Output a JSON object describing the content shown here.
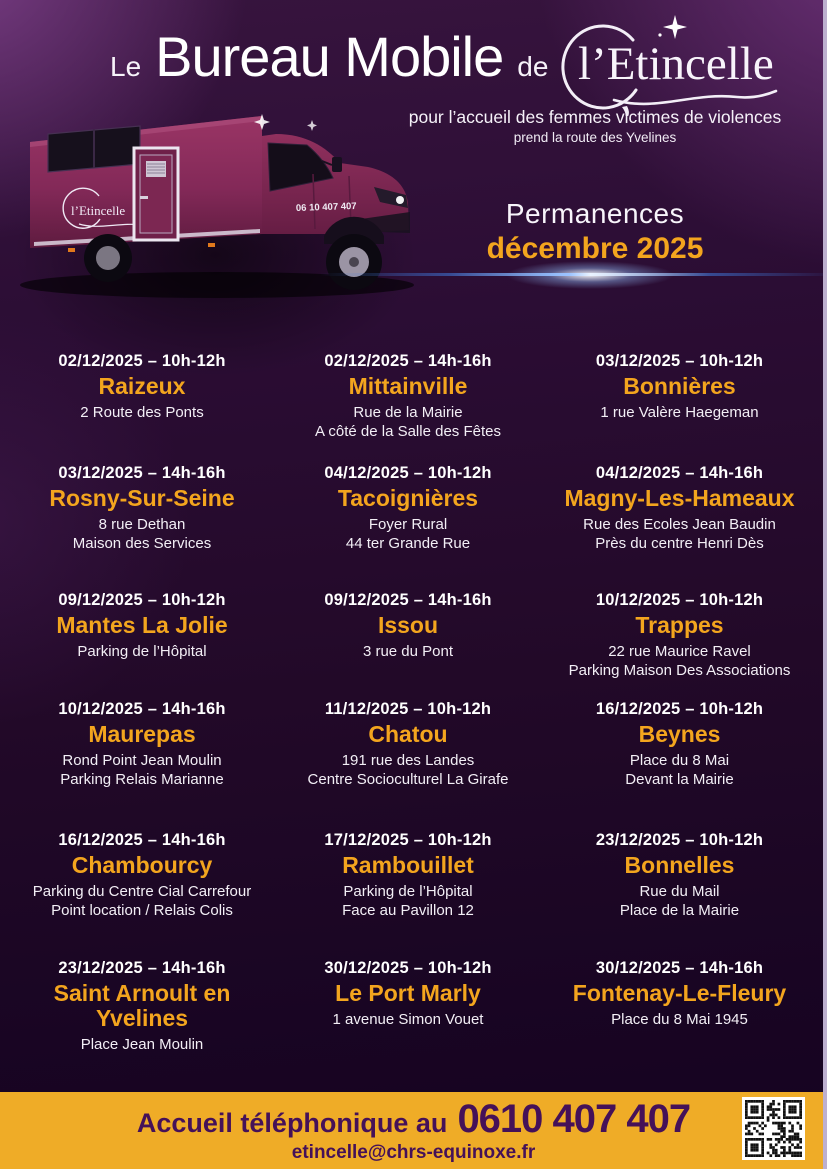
{
  "header": {
    "title_prefix": "Le",
    "title_main": "Bureau Mobile",
    "title_suffix": "de",
    "logo_text": "l’Etincelle",
    "subtitle_line1": "pour l’accueil des femmes victimes de violences",
    "subtitle_line2": "prend la route des Yvelines"
  },
  "hero": {
    "van_logo_text": "l’Etincelle",
    "van_phone": "06 10 407 407",
    "permanences_label": "Permanences",
    "period_label": "décembre 2025"
  },
  "schedule": {
    "entries": [
      {
        "date": "02/12/2025 – 10h-12h",
        "city": "Raizeux",
        "lines": [
          "2 Route des Ponts"
        ]
      },
      {
        "date": "02/12/2025 – 14h-16h",
        "city": "Mittainville",
        "lines": [
          "Rue de la Mairie",
          "A côté de la Salle des Fêtes"
        ]
      },
      {
        "date": "03/12/2025 – 10h-12h",
        "city": "Bonnières",
        "lines": [
          "1 rue Valère Haegeman"
        ]
      },
      {
        "date": "03/12/2025 – 14h-16h",
        "city": "Rosny-Sur-Seine",
        "lines": [
          "8 rue Dethan",
          "Maison des Services"
        ]
      },
      {
        "date": "04/12/2025 – 10h-12h",
        "city": "Tacoignières",
        "lines": [
          "Foyer Rural",
          "44 ter Grande Rue"
        ]
      },
      {
        "date": "04/12/2025 – 14h-16h",
        "city": "Magny-Les-Hameaux",
        "lines": [
          "Rue des Ecoles Jean Baudin",
          "Près du centre Henri Dès"
        ]
      },
      {
        "date": "09/12/2025 – 10h-12h",
        "city": "Mantes La Jolie",
        "lines": [
          "Parking de l’Hôpital"
        ]
      },
      {
        "date": "09/12/2025 – 14h-16h",
        "city": "Issou",
        "lines": [
          "3 rue du Pont"
        ]
      },
      {
        "date": "10/12/2025 – 10h-12h",
        "city": "Trappes",
        "lines": [
          "22 rue Maurice Ravel",
          "Parking Maison Des Associations"
        ]
      },
      {
        "date": "10/12/2025 – 14h-16h",
        "city": "Maurepas",
        "lines": [
          "Rond Point Jean Moulin",
          "Parking Relais Marianne"
        ]
      },
      {
        "date": "11/12/2025 – 10h-12h",
        "city": "Chatou",
        "lines": [
          "191 rue des Landes",
          "Centre Socioculturel La Girafe"
        ]
      },
      {
        "date": "16/12/2025 – 10h-12h",
        "city": "Beynes",
        "lines": [
          "Place du 8 Mai",
          "Devant la Mairie"
        ]
      },
      {
        "date": "16/12/2025 – 14h-16h",
        "city": "Chambourcy",
        "lines": [
          "Parking du Centre Cial Carrefour",
          "Point location / Relais Colis"
        ]
      },
      {
        "date": "17/12/2025 – 10h-12h",
        "city": "Rambouillet",
        "lines": [
          "Parking de l’Hôpital",
          "Face au Pavillon 12"
        ]
      },
      {
        "date": "23/12/2025 – 10h-12h",
        "city": "Bonnelles",
        "lines": [
          "Rue du Mail",
          "Place de la Mairie"
        ]
      },
      {
        "date": "23/12/2025 – 14h-16h",
        "city": "Saint Arnoult en Yvelines",
        "lines": [
          "Place Jean Moulin"
        ]
      },
      {
        "date": "30/12/2025 – 10h-12h",
        "city": "Le Port Marly",
        "lines": [
          "1 avenue Simon Vouet"
        ]
      },
      {
        "date": "30/12/2025 – 14h-16h",
        "city": "Fontenay-Le-Fleury",
        "lines": [
          "Place du 8 Mai 1945"
        ]
      }
    ]
  },
  "footer": {
    "phone_prefix": "Accueil téléphonique au",
    "phone_number": "0610 407 407",
    "email": "etincelle@chrs-equinoxe.fr"
  },
  "colors": {
    "accent_yellow": "#F3A51E",
    "footer_bg": "#EFAC27",
    "footer_text": "#451158",
    "background_purple": "#2B0D34",
    "van_body": "#8E2F5F",
    "flare_blue": "#9CC4FF"
  }
}
